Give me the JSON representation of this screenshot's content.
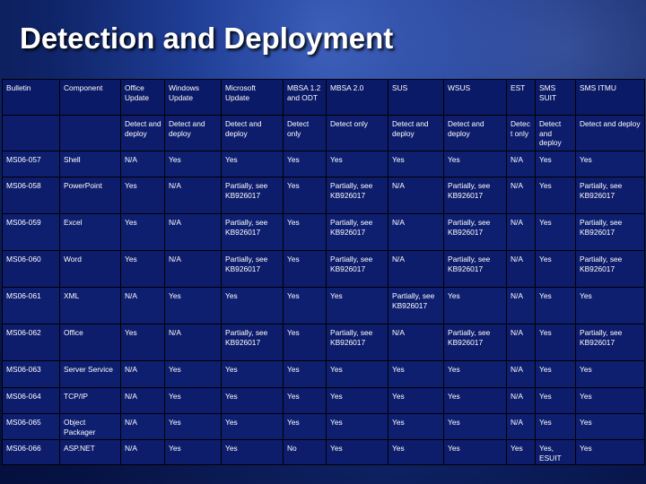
{
  "title": "Detection and Deployment",
  "columns": [
    "Bulletin",
    "Component",
    "Office Update",
    "Windows Update",
    "Microsoft Update",
    "MBSA 1.2 and ODT",
    "MBSA 2.0",
    "SUS",
    "WSUS",
    "EST",
    "SMS SUIT",
    "SMS ITMU"
  ],
  "subheader": [
    "",
    "",
    "Detect and deploy",
    "Detect and deploy",
    "Detect and deploy",
    "Detect only",
    "Detect only",
    "Detect and deploy",
    "Detect and deploy",
    "Detect only",
    "Detect and deploy",
    "Detect and deploy"
  ],
  "rows": [
    [
      "MS06-057",
      "Shell",
      "N/A",
      "Yes",
      "Yes",
      "Yes",
      "Yes",
      "Yes",
      "Yes",
      "N/A",
      "Yes",
      "Yes"
    ],
    [
      "MS06-058",
      "PowerPoint",
      "Yes",
      "N/A",
      "Partially, see KB926017",
      "Yes",
      "Partially, see KB926017",
      "N/A",
      "Partially, see KB926017",
      "N/A",
      "Yes",
      "Partially, see KB926017"
    ],
    [
      "MS06-059",
      "Excel",
      "Yes",
      "N/A",
      "Partially, see KB926017",
      "Yes",
      "Partially, see KB926017",
      "N/A",
      "Partially, see KB926017",
      "N/A",
      "Yes",
      "Partially, see KB926017"
    ],
    [
      "MS06-060",
      "Word",
      "Yes",
      "N/A",
      "Partially, see KB926017",
      "Yes",
      "Partially, see KB926017",
      "N/A",
      "Partially, see KB926017",
      "N/A",
      "Yes",
      "Partially, see KB926017"
    ],
    [
      "MS06-061",
      "XML",
      "N/A",
      "Yes",
      "Yes",
      "Yes",
      "Yes",
      "Partially, see KB926017",
      "Yes",
      "N/A",
      "Yes",
      "Yes"
    ],
    [
      "MS06-062",
      "Office",
      "Yes",
      "N/A",
      "Partially, see KB926017",
      "Yes",
      "Partially, see KB926017",
      "N/A",
      "Partially, see KB926017",
      "N/A",
      "Yes",
      "Partially, see KB926017"
    ],
    [
      "MS06-063",
      "Server Service",
      "N/A",
      "Yes",
      "Yes",
      "Yes",
      "Yes",
      "Yes",
      "Yes",
      "N/A",
      "Yes",
      "Yes"
    ],
    [
      "MS06-064",
      "TCP/IP",
      "N/A",
      "Yes",
      "Yes",
      "Yes",
      "Yes",
      "Yes",
      "Yes",
      "N/A",
      "Yes",
      "Yes"
    ],
    [
      "MS06-065",
      "Object Packager",
      "N/A",
      "Yes",
      "Yes",
      "Yes",
      "Yes",
      "Yes",
      "Yes",
      "N/A",
      "Yes",
      "Yes"
    ],
    [
      "MS06-066",
      "ASP.NET",
      "N/A",
      "Yes",
      "Yes",
      "No",
      "Yes",
      "Yes",
      "Yes",
      "Yes",
      "Yes, ESUIT",
      "Yes"
    ]
  ]
}
